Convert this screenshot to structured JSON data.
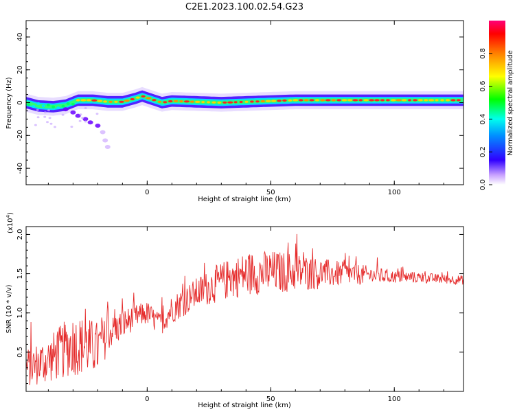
{
  "title": "C2E1.2023.100.02.54.G23",
  "chart_data": [
    {
      "type": "heatmap",
      "xlabel": "Height of straight line (km)",
      "ylabel": "Frequency (Hz)",
      "xlim": [
        -49,
        128
      ],
      "ylim": [
        -50,
        50
      ],
      "xticks": [
        0,
        50,
        100
      ],
      "yticks": [
        40,
        20,
        0,
        -20,
        -40
      ],
      "colorbar": {
        "label": "Normalized spectral amplitude",
        "range": [
          0,
          1
        ],
        "ticks": [
          "0.0",
          "0.2",
          "0.4",
          "0.6",
          "0.8"
        ]
      },
      "ridge": [
        [
          -49,
          0.0
        ],
        [
          -44,
          -2.0
        ],
        [
          -38,
          -2.5
        ],
        [
          -33,
          -1.5
        ],
        [
          -28,
          1.5
        ],
        [
          -22,
          1.5
        ],
        [
          -16,
          0.5
        ],
        [
          -10,
          0.5
        ],
        [
          -5,
          2.5
        ],
        [
          -2,
          4.0
        ],
        [
          3,
          1.5
        ],
        [
          6,
          0.0
        ],
        [
          10,
          1.0
        ],
        [
          20,
          0.5
        ],
        [
          30,
          0.0
        ],
        [
          40,
          0.5
        ],
        [
          50,
          1.0
        ],
        [
          60,
          1.5
        ],
        [
          70,
          1.5
        ],
        [
          80,
          1.5
        ],
        [
          90,
          1.5
        ],
        [
          100,
          1.5
        ],
        [
          110,
          1.5
        ],
        [
          120,
          1.5
        ],
        [
          128,
          1.5
        ]
      ],
      "tail": [
        [
          -33,
          -4
        ],
        [
          -30,
          -6
        ],
        [
          -28,
          -8
        ],
        [
          -25,
          -10
        ],
        [
          -23,
          -12
        ],
        [
          -20,
          -14
        ],
        [
          -18,
          -18
        ],
        [
          -17,
          -23
        ],
        [
          -16,
          -27
        ]
      ],
      "grid": false,
      "legend": "none"
    },
    {
      "type": "line",
      "xlabel": "Height of straight line (km)",
      "ylabel": "SNR (10 * v/v)",
      "scale_note": "(x10",
      "scale_exp": "4",
      "scale_close": ")",
      "xlim": [
        -49,
        128
      ],
      "ylim": [
        0,
        2.1
      ],
      "xticks": [
        0,
        50,
        100
      ],
      "yticks": [
        0.5,
        1.0,
        1.5,
        2.0
      ],
      "ytick_labels": [
        "0.5",
        "1.0",
        "1.5",
        "2.0"
      ],
      "color": "#e52b2b",
      "envelope": {
        "x": [
          -49,
          -40,
          -30,
          -20,
          -15,
          -10,
          -5,
          0,
          5,
          10,
          20,
          30,
          40,
          50,
          60,
          70,
          80,
          90,
          100,
          110,
          120,
          128
        ],
        "mid": [
          0.3,
          0.4,
          0.6,
          0.55,
          0.75,
          0.85,
          0.95,
          1.0,
          0.85,
          1.05,
          1.25,
          1.4,
          1.5,
          1.52,
          1.52,
          1.5,
          1.5,
          1.48,
          1.46,
          1.45,
          1.43,
          1.42
        ],
        "amp": [
          0.25,
          0.3,
          0.4,
          0.35,
          0.2,
          0.2,
          0.15,
          0.15,
          0.15,
          0.18,
          0.2,
          0.25,
          0.28,
          0.28,
          0.25,
          0.2,
          0.15,
          0.12,
          0.08,
          0.07,
          0.06,
          0.06
        ]
      },
      "grid": false,
      "legend": "none"
    }
  ]
}
